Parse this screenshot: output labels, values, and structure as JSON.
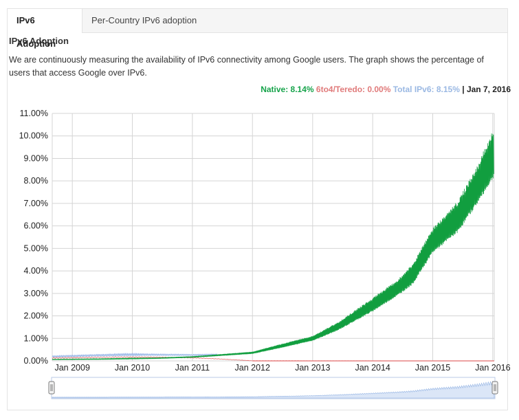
{
  "tabs": [
    {
      "label": "IPv6 Adoption",
      "active": true
    },
    {
      "label": "Per-Country IPv6 adoption",
      "active": false
    }
  ],
  "section_title": "IPv6 Adoption",
  "description": "We are continuously measuring the availability of IPv6 connectivity among Google users. The graph shows the percentage of users that access Google over IPv6.",
  "legend": {
    "native": "Native: 8.14%",
    "sixto4": "6to4/Teredo: 0.00%",
    "total": "Total IPv6: 8.15%",
    "separator": "|",
    "date": "Jan 7, 2016"
  },
  "colors": {
    "native": "#119e3f",
    "sixto4": "#e26b6b",
    "total": "#9cb9e8",
    "grid": "#d4d4d4"
  },
  "chart_data": {
    "type": "line",
    "title": "",
    "xlabel": "",
    "ylabel": "",
    "xlim": [
      "2008-09-01",
      "2016-01-10"
    ],
    "ylim": [
      0,
      11
    ],
    "y_ticks": [
      0,
      1,
      2,
      3,
      4,
      5,
      6,
      7,
      8,
      9,
      10,
      11
    ],
    "y_tick_labels": [
      "0.00%",
      "1.00%",
      "2.00%",
      "3.00%",
      "4.00%",
      "5.00%",
      "6.00%",
      "7.00%",
      "8.00%",
      "9.00%",
      "10.00%",
      "11.00%"
    ],
    "x_ticks": [
      "2009-01-01",
      "2010-01-01",
      "2011-01-01",
      "2012-01-01",
      "2013-01-01",
      "2014-01-01",
      "2015-01-01",
      "2016-01-01"
    ],
    "x_tick_labels": [
      "Jan 2009",
      "Jan 2010",
      "Jan 2011",
      "Jan 2012",
      "Jan 2013",
      "Jan 2014",
      "Jan 2015",
      "Jan 2016"
    ],
    "grid": true,
    "series": [
      {
        "name": "Native",
        "color": "#119e3f",
        "x": [
          "2008-09-01",
          "2009-06-01",
          "2010-01-01",
          "2010-06-01",
          "2011-01-01",
          "2011-06-01",
          "2012-01-01",
          "2012-06-01",
          "2013-01-01",
          "2013-06-01",
          "2014-01-01",
          "2014-06-01",
          "2014-09-01",
          "2015-01-01",
          "2015-06-01",
          "2015-10-01",
          "2016-01-07"
        ],
        "low": [
          0.05,
          0.06,
          0.08,
          0.1,
          0.15,
          0.22,
          0.32,
          0.55,
          0.9,
          1.35,
          2.2,
          2.9,
          3.4,
          4.8,
          5.7,
          7.0,
          8.14
        ],
        "high": [
          0.08,
          0.1,
          0.13,
          0.14,
          0.2,
          0.28,
          0.4,
          0.7,
          1.1,
          1.7,
          2.8,
          3.6,
          4.3,
          5.9,
          7.1,
          8.7,
          10.4
        ]
      },
      {
        "name": "6to4/Teredo",
        "color": "#e26b6b",
        "x": [
          "2008-09-01",
          "2009-06-01",
          "2010-01-01",
          "2010-06-01",
          "2011-01-01",
          "2011-06-01",
          "2012-01-01",
          "2016-01-07"
        ],
        "low": [
          0.1,
          0.14,
          0.15,
          0.15,
          0.12,
          0.08,
          0.0,
          0.0
        ],
        "high": [
          0.16,
          0.18,
          0.19,
          0.18,
          0.15,
          0.1,
          0.01,
          0.0
        ]
      },
      {
        "name": "Total IPv6",
        "color": "#9cb9e8",
        "x": [
          "2008-09-01",
          "2009-06-01",
          "2010-01-01",
          "2010-06-01",
          "2011-01-01",
          "2011-06-01"
        ],
        "low": [
          0.15,
          0.2,
          0.22,
          0.23,
          0.23,
          0.25
        ],
        "high": [
          0.24,
          0.3,
          0.35,
          0.32,
          0.3,
          0.32
        ]
      }
    ]
  }
}
